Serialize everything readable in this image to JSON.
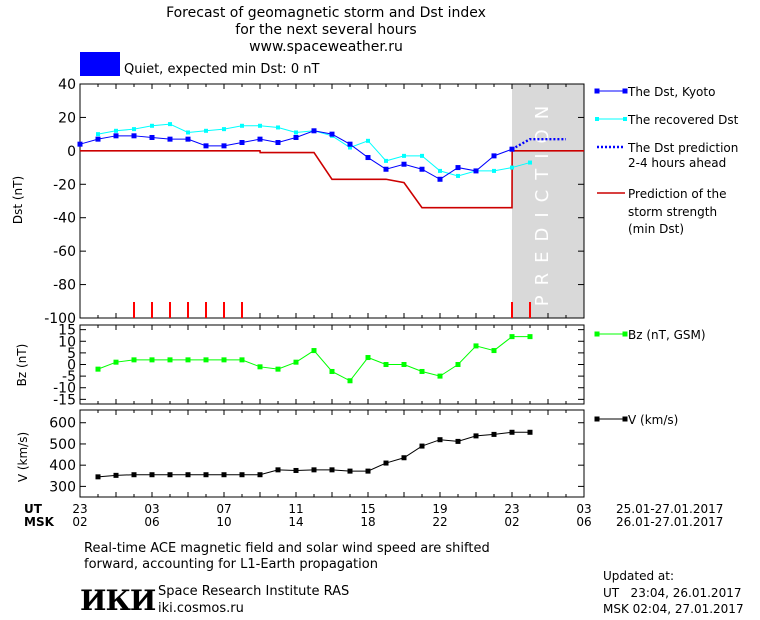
{
  "header": {
    "title_line1": "Forecast of geomagnetic storm and Dst index",
    "title_line2": "for the next several hours",
    "title_line3": "www.spaceweather.ru",
    "status_color": "#0000ff",
    "status_text": "Quiet, expected min Dst: 0 nT"
  },
  "legend": {
    "dst_kyoto": "The Dst, Kyoto",
    "dst_recovered": "The recovered Dst",
    "dst_prediction_line1": "The Dst prediction",
    "dst_prediction_line2": "2-4 hours ahead",
    "storm_line1": "Prediction of the",
    "storm_line2": "storm strength",
    "storm_line3": "(min Dst)",
    "bz": "Bz (nT, GSM)",
    "v": "V (km/s)"
  },
  "prediction_label": "PREDICTION",
  "time_axis": {
    "ut_label": "UT",
    "msk_label": "MSK",
    "ut_ticks": [
      "23",
      "03",
      "07",
      "11",
      "15",
      "19",
      "23",
      "03"
    ],
    "msk_ticks": [
      "02",
      "06",
      "10",
      "14",
      "18",
      "22",
      "02",
      "06"
    ],
    "ut_range": "25.01-27.01.2017",
    "msk_range": "26.01-27.01.2017"
  },
  "footer": {
    "note_line1": "Real-time ACE magnetic field and solar wind speed are shifted",
    "note_line2": "forward, accounting for L1-Earth propagation",
    "logo_text": "ИКИ",
    "institute": "Space Research Institute RAS",
    "website": "iki.cosmos.ru",
    "updated_label": "Updated at:",
    "updated_ut": "UT   23:04, 26.01.2017",
    "updated_msk": "MSK 02:04, 27.01.2017"
  },
  "chart_data": [
    {
      "type": "line",
      "ylabel": "Dst (nT)",
      "ylim": [
        -100,
        40
      ],
      "yticks": [
        40,
        20,
        0,
        -20,
        -40,
        -60,
        -80,
        -100
      ],
      "xlim": [
        0,
        28
      ],
      "prediction_region": [
        24,
        28
      ],
      "colors": {
        "dst_kyoto": "#0000ff",
        "dst_recovered": "#00ffff",
        "storm": "#cc0000",
        "ticks": "#ff0000",
        "prediction_bg": "#d9d9d9"
      },
      "series": [
        {
          "name": "The Dst, Kyoto",
          "x": [
            0,
            1,
            2,
            3,
            4,
            5,
            6,
            7,
            8,
            9,
            10,
            11,
            12,
            13,
            14,
            15,
            16,
            17,
            18,
            19,
            20,
            21,
            22,
            23,
            24
          ],
          "y": [
            4,
            7,
            9,
            9,
            8,
            7,
            7,
            3,
            3,
            5,
            7,
            5,
            8,
            12,
            10,
            4,
            -4,
            -11,
            -8,
            -11,
            -17,
            -10,
            -12,
            -3,
            1
          ]
        },
        {
          "name": "The recovered Dst",
          "x": [
            1,
            2,
            3,
            4,
            5,
            6,
            7,
            8,
            9,
            10,
            11,
            12,
            13,
            14,
            15,
            16,
            17,
            18,
            19,
            20,
            21,
            22,
            23,
            24,
            25
          ],
          "y": [
            10,
            12,
            13,
            15,
            16,
            11,
            12,
            13,
            15,
            15,
            14,
            11,
            12,
            9,
            2,
            6,
            -6,
            -3,
            -3,
            -12,
            -15,
            -12,
            -12,
            -10,
            -7
          ]
        },
        {
          "name": "The Dst prediction 2-4 hours ahead",
          "x": [
            24,
            25,
            26,
            27
          ],
          "y": [
            1,
            7,
            7,
            7
          ]
        },
        {
          "name": "Prediction of the storm strength (min Dst)",
          "x": [
            0,
            10,
            10.01,
            13,
            14,
            17,
            18,
            19,
            23,
            24,
            24.01,
            28
          ],
          "y": [
            0,
            0,
            -1,
            -1,
            -17,
            -17,
            -19,
            -34,
            -34,
            -34,
            0,
            0
          ]
        }
      ],
      "storm_ticks_x": [
        3,
        4,
        5,
        6,
        7,
        8,
        9,
        24,
        25
      ]
    },
    {
      "type": "line",
      "ylabel": "Bz (nT)",
      "ylim": [
        -17,
        17
      ],
      "yticks": [
        15,
        10,
        5,
        0,
        -5,
        -10,
        -15
      ],
      "color": "#00ff00",
      "series": [
        {
          "name": "Bz (nT, GSM)",
          "x": [
            1,
            2,
            3,
            4,
            5,
            6,
            7,
            8,
            9,
            10,
            11,
            12,
            13,
            14,
            15,
            16,
            17,
            18,
            19,
            20,
            21,
            22,
            23,
            24,
            25
          ],
          "y": [
            -2,
            1,
            2,
            2,
            2,
            2,
            2,
            2,
            2,
            -1,
            -2,
            1,
            6,
            -3,
            -7,
            3,
            0,
            0,
            -3,
            -5,
            0,
            8,
            6,
            12,
            12
          ]
        }
      ]
    },
    {
      "type": "line",
      "ylabel": "V (km/s)",
      "ylim": [
        250,
        660
      ],
      "yticks": [
        300,
        400,
        500,
        600
      ],
      "color": "#000000",
      "series": [
        {
          "name": "V (km/s)",
          "x": [
            1,
            2,
            3,
            4,
            5,
            6,
            7,
            8,
            9,
            10,
            11,
            12,
            13,
            14,
            15,
            16,
            17,
            18,
            19,
            20,
            21,
            22,
            23,
            24,
            25
          ],
          "y": [
            345,
            352,
            355,
            355,
            355,
            355,
            355,
            355,
            355,
            355,
            378,
            375,
            378,
            378,
            372,
            372,
            410,
            435,
            490,
            520,
            512,
            538,
            545,
            555,
            555
          ]
        }
      ]
    }
  ]
}
